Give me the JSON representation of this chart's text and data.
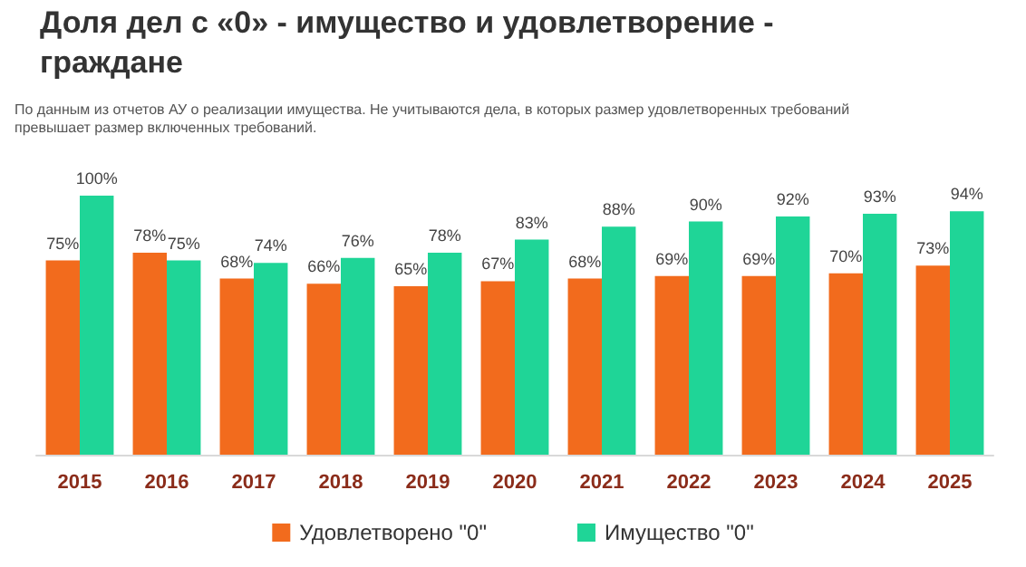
{
  "chart_data": {
    "type": "bar",
    "title": "Доля дел с «0» - имущество и удовлетворение - граждане",
    "subtitle": "По данным из отчетов АУ о реализации  имущества. Не учитываются дела, в которых размер удовлетворенных требований превышает размер включенных требований.",
    "categories": [
      "2015",
      "2016",
      "2017",
      "2018",
      "2019",
      "2020",
      "2021",
      "2022",
      "2023",
      "2024",
      "2025"
    ],
    "series": [
      {
        "name": "Удовлетворено \"0\"",
        "color": "#f26b1d",
        "values": [
          75,
          78,
          68,
          66,
          65,
          67,
          68,
          69,
          69,
          70,
          73
        ],
        "value_labels": [
          "75%",
          "78%",
          "68%",
          "66%",
          "65%",
          "67%",
          "68%",
          "69%",
          "69%",
          "70%",
          "73%"
        ]
      },
      {
        "name": "Имущество \"0\"",
        "color": "#1fd597",
        "values": [
          100,
          75,
          74,
          76,
          78,
          83,
          88,
          90,
          92,
          93,
          94
        ],
        "value_labels": [
          "100%",
          "75%",
          "74%",
          "76%",
          "78%",
          "83%",
          "88%",
          "90%",
          "92%",
          "93%",
          "94%"
        ]
      }
    ],
    "legend": "bottom"
  }
}
